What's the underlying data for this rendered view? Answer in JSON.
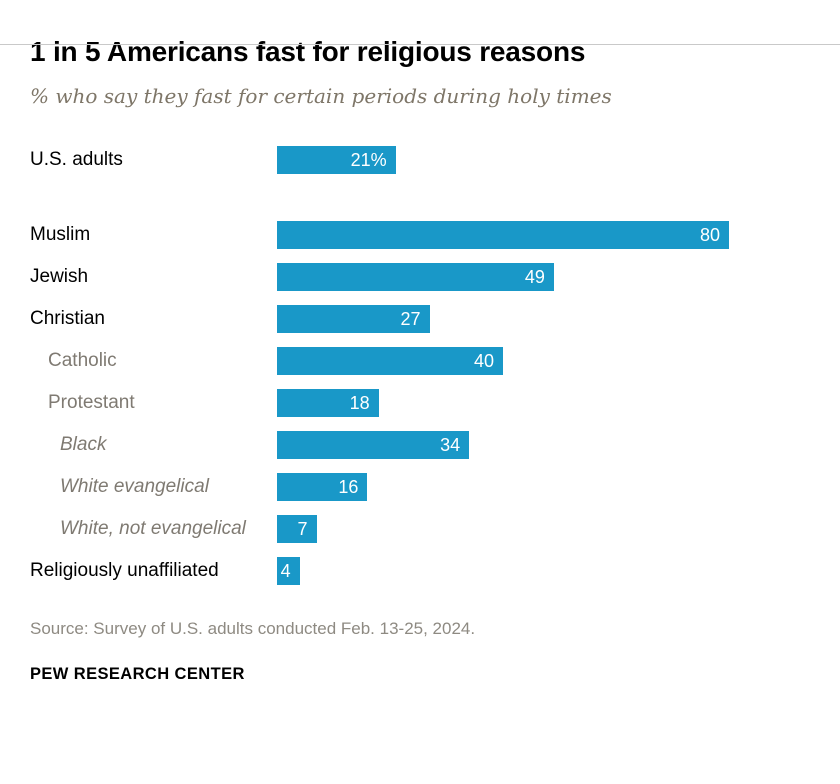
{
  "header": {
    "title": "1 in 5 Americans fast for religious reasons",
    "subtitle": "% who say they fast for certain periods during holy times"
  },
  "chart_data": {
    "type": "bar",
    "orientation": "horizontal",
    "title": "1 in 5 Americans fast for religious reasons",
    "subtitle": "% who say they fast for certain periods during holy times",
    "bar_color": "#1998c8",
    "value_label_color": "#ffffff",
    "max_value": 80,
    "xlim": [
      0,
      80
    ],
    "grid": false,
    "legend": "none",
    "categories": [
      "U.S. adults",
      "Muslim",
      "Jewish",
      "Christian",
      "Catholic",
      "Protestant",
      "Black",
      "White evangelical",
      "White, not evangelical",
      "Religiously unaffiliated"
    ],
    "values": [
      21,
      80,
      49,
      27,
      40,
      18,
      34,
      16,
      7,
      4
    ],
    "rows": [
      {
        "label": "U.S. adults",
        "value": 21,
        "display": "21%",
        "style": "primary",
        "indent": 0,
        "gap_after": true
      },
      {
        "label": "Muslim",
        "value": 80,
        "display": "80",
        "style": "primary",
        "indent": 0,
        "gap_after": false
      },
      {
        "label": "Jewish",
        "value": 49,
        "display": "49",
        "style": "primary",
        "indent": 0,
        "gap_after": false
      },
      {
        "label": "Christian",
        "value": 27,
        "display": "27",
        "style": "primary",
        "indent": 0,
        "gap_after": false
      },
      {
        "label": "Catholic",
        "value": 40,
        "display": "40",
        "style": "secondary",
        "indent": 18,
        "gap_after": false
      },
      {
        "label": "Protestant",
        "value": 18,
        "display": "18",
        "style": "secondary",
        "indent": 18,
        "gap_after": false
      },
      {
        "label": "Black",
        "value": 34,
        "display": "34",
        "style": "tertiary",
        "indent": 30,
        "gap_after": false
      },
      {
        "label": "White evangelical",
        "value": 16,
        "display": "16",
        "style": "tertiary",
        "indent": 30,
        "gap_after": false
      },
      {
        "label": "White, not evangelical",
        "value": 7,
        "display": "7",
        "style": "tertiary",
        "indent": 30,
        "gap_after": false
      },
      {
        "label": "Religiously unaffiliated",
        "value": 4,
        "display": "4",
        "style": "primary",
        "indent": 0,
        "gap_after": false
      }
    ]
  },
  "footer": {
    "source": "Source: Survey of U.S. adults conducted Feb. 13-25, 2024.",
    "brand": "PEW RESEARCH CENTER"
  }
}
